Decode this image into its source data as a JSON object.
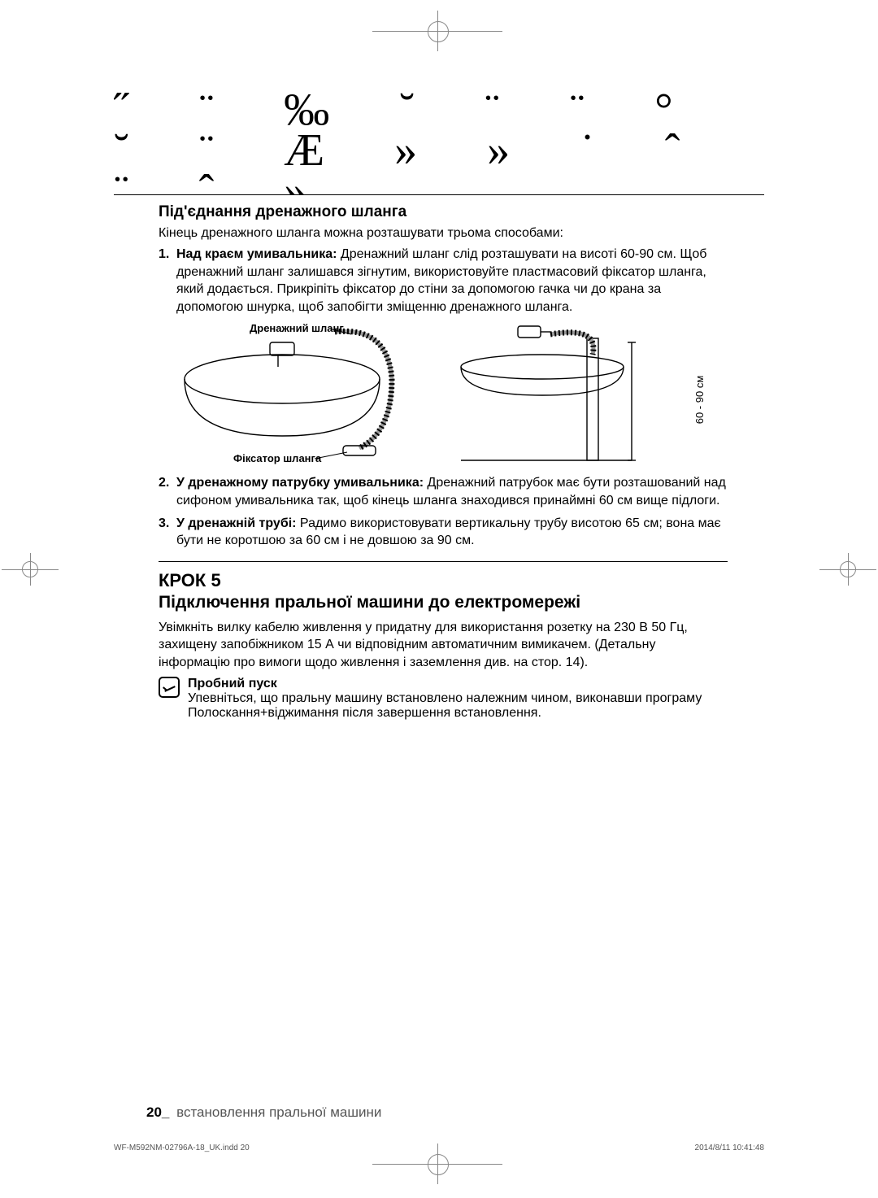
{
  "deco_glyphs": "˝ ¨ ‰ ˘ ¨ ¨ ° ˘ ¨ Æ\n  »      »\n˙ ˆ ¨ ˆ\n »",
  "section1": {
    "heading": "Під'єднання дренажного шланга",
    "lead": "Кінець дренажного шланга можна розташувати трьома способами:",
    "items": [
      {
        "num": "1.",
        "bold": "Над краєм умивальника:",
        "text": " Дренажний шланг слід розташувати на висоті 60-90 см. Щоб дренажний шланг залишався зігнутим, використовуйте пластмасовий фіксатор шланга, який додається. Прикріпіть фіксатор до стіни за допомогою гачка чи до крана за допомогою шнурка, щоб запобігти зміщенню дренажного шланга."
      },
      {
        "num": "2.",
        "bold": "У дренажному патрубку умивальника:",
        "text": " Дренажний патрубок має бути розташований над сифоном умивальника так, щоб кінець шланга знаходився принаймні 60 см вище підлоги."
      },
      {
        "num": "3.",
        "bold": "У дренажній трубі:",
        "text": " Радимо використовувати вертикальну трубу висотою 65 см; вона має бути не коротшою за 60 см і не довшою за 90 см."
      }
    ]
  },
  "diagram": {
    "label_hose": "Дренажний шланг",
    "label_guide": "Фіксатор шланга",
    "label_height": "60 - 90 см"
  },
  "section2": {
    "step": "КРОК 5",
    "title": "Підключення пральної машини до електромережі",
    "body": "Увімкніть вилку кабелю живлення у придатну для використання розетку на 230 В 50 Гц, захищену запобіжником 15 А чи відповідним автоматичним вимикачем. (Детальну інформацію про вимоги щодо живлення і заземлення див. на стор. 14).",
    "note_title": "Пробний пуск",
    "note_body": "Упевніться, що пральну машину встановлено належним чином, виконавши програму Полоскання+віджимання після завершення встановлення."
  },
  "footer": {
    "page": "20_",
    "text": "встановлення пральної машини"
  },
  "imprint": {
    "left": "WF-M592NM-02796A-18_UK.indd   20",
    "right": "2014/8/11   10:41:48"
  }
}
